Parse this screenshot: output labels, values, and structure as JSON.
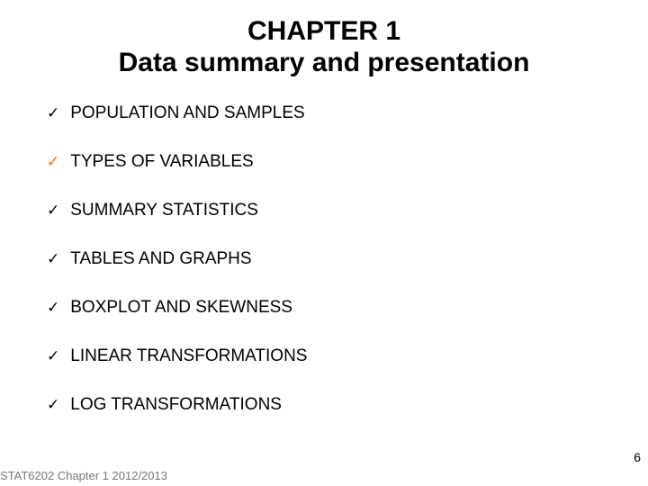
{
  "title_line1": "CHAPTER 1",
  "title_line2": "Data summary and presentation",
  "items": [
    {
      "label": "POPULATION AND SAMPLES",
      "check_color": "black"
    },
    {
      "label": "TYPES OF VARIABLES",
      "check_color": "orange"
    },
    {
      "label": "SUMMARY STATISTICS",
      "check_color": "black"
    },
    {
      "label": "TABLES AND GRAPHS",
      "check_color": "black"
    },
    {
      "label": "BOXPLOT AND SKEWNESS",
      "check_color": "black"
    },
    {
      "label": "LINEAR TRANSFORMATIONS",
      "check_color": "black"
    },
    {
      "label": "LOG TRANSFORMATIONS",
      "check_color": "black"
    }
  ],
  "footer": "STAT6202 Chapter 1 2012/2013",
  "page_number": "6",
  "colors": {
    "black": "#000000",
    "orange": "#ff6600",
    "footer_grey": "#777777",
    "background": "#ffffff"
  }
}
